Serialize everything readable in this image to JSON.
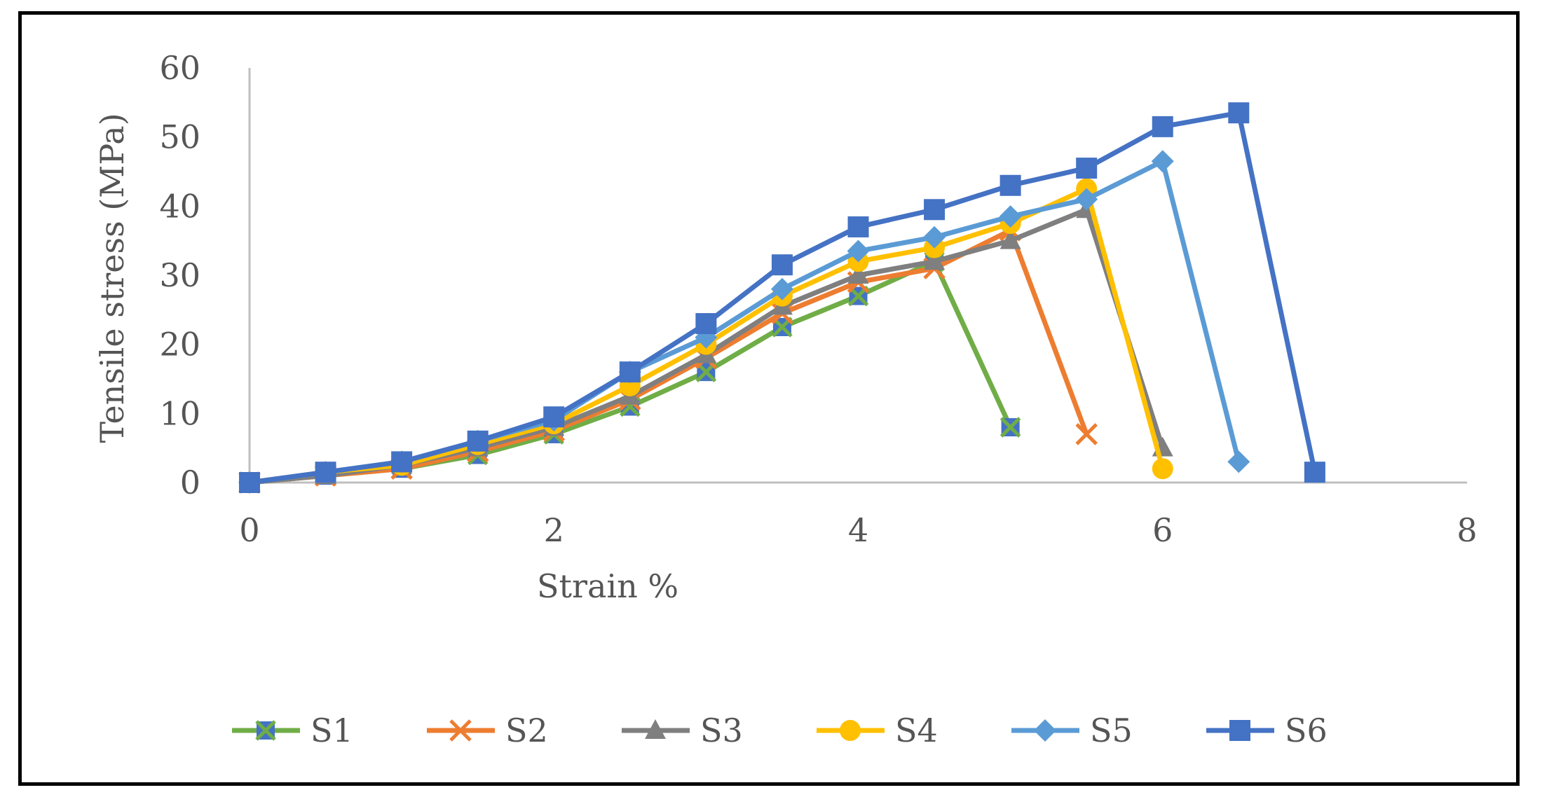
{
  "chart_data": {
    "type": "line",
    "title": "",
    "xlabel": "Strain %",
    "ylabel": "Tensile stress (MPa)",
    "xlim": [
      0,
      8
    ],
    "ylim": [
      0,
      60
    ],
    "xticks": [
      "0",
      "2",
      "4",
      "6",
      "8"
    ],
    "yticks": [
      "0",
      "10",
      "20",
      "30",
      "40",
      "50",
      "60"
    ],
    "grid": false,
    "legend_position": "bottom",
    "series": [
      {
        "name": "S1",
        "color": "#70AD47",
        "marker": "x-square",
        "x": [
          0,
          0.5,
          1,
          1.5,
          2,
          2.5,
          3,
          3.5,
          4,
          4.5,
          5
        ],
        "y": [
          0,
          1,
          2,
          4,
          7,
          11,
          16,
          22.5,
          27,
          32,
          8
        ]
      },
      {
        "name": "S2",
        "color": "#ED7D31",
        "marker": "x",
        "x": [
          0,
          0.5,
          1,
          1.5,
          2,
          2.5,
          3,
          3.5,
          4,
          4.5,
          5,
          5.5
        ],
        "y": [
          0,
          1,
          2,
          4.5,
          7.5,
          12,
          18,
          24.5,
          29,
          31,
          36.5,
          7
        ]
      },
      {
        "name": "S3",
        "color": "#7F7F7F",
        "marker": "triangle",
        "x": [
          0,
          0.5,
          1,
          1.5,
          2,
          2.5,
          3,
          3.5,
          4,
          4.5,
          5,
          5.5,
          6
        ],
        "y": [
          0,
          1,
          2.5,
          5,
          8,
          12.5,
          18.5,
          25.5,
          30,
          32,
          35,
          39.5,
          5
        ]
      },
      {
        "name": "S4",
        "color": "#FFC000",
        "marker": "circle",
        "x": [
          0,
          0.5,
          1,
          1.5,
          2,
          2.5,
          3,
          3.5,
          4,
          4.5,
          5,
          5.5,
          6
        ],
        "y": [
          0,
          1.5,
          2.5,
          5.5,
          8.5,
          14,
          20,
          27,
          32,
          34,
          37.5,
          42.5,
          2
        ]
      },
      {
        "name": "S5",
        "color": "#5B9BD5",
        "marker": "diamond",
        "x": [
          0,
          0.5,
          1,
          1.5,
          2,
          2.5,
          3,
          3.5,
          4,
          4.5,
          5,
          5.5,
          6,
          6.5
        ],
        "y": [
          0,
          1.5,
          3,
          6,
          9,
          16,
          21,
          28,
          33.5,
          35.5,
          38.5,
          41,
          46.5,
          3
        ]
      },
      {
        "name": "S6",
        "color": "#4472C4",
        "marker": "square",
        "x": [
          0,
          0.5,
          1,
          1.5,
          2,
          2.5,
          3,
          3.5,
          4,
          4.5,
          5,
          5.5,
          6,
          6.5,
          7
        ],
        "y": [
          0,
          1.5,
          3,
          6,
          9.5,
          16,
          23,
          31.5,
          37,
          39.5,
          43,
          45.5,
          51.5,
          53.5,
          1.5
        ]
      }
    ]
  }
}
